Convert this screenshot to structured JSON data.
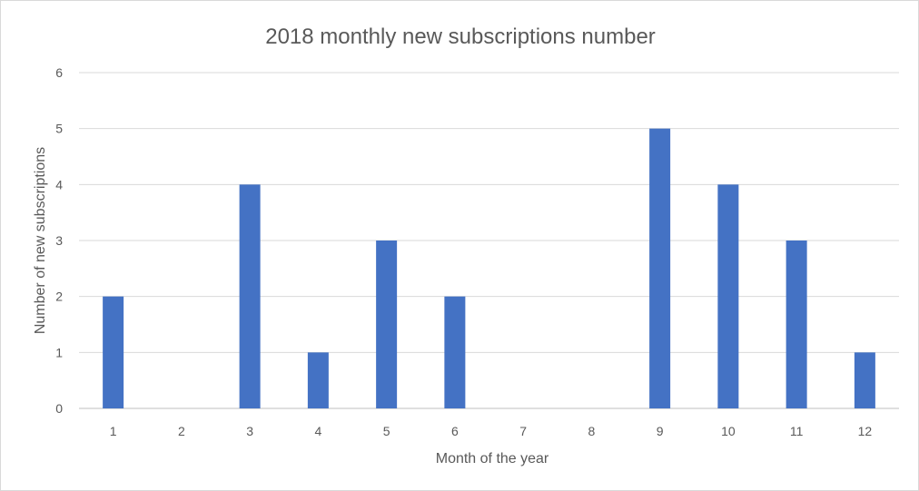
{
  "chart_data": {
    "type": "bar",
    "title": "2018 monthly new subscriptions number",
    "xlabel": "Month of the year",
    "ylabel": "Number of new subscriptions",
    "categories": [
      "1",
      "2",
      "3",
      "4",
      "5",
      "6",
      "7",
      "8",
      "9",
      "10",
      "11",
      "12"
    ],
    "values": [
      2,
      0,
      4,
      1,
      3,
      2,
      0,
      0,
      5,
      4,
      3,
      1
    ],
    "ylim": [
      0,
      6
    ],
    "yticks": [
      0,
      1,
      2,
      3,
      4,
      5,
      6
    ],
    "grid": true,
    "legend": "none",
    "bar_color": "#4472c4"
  }
}
